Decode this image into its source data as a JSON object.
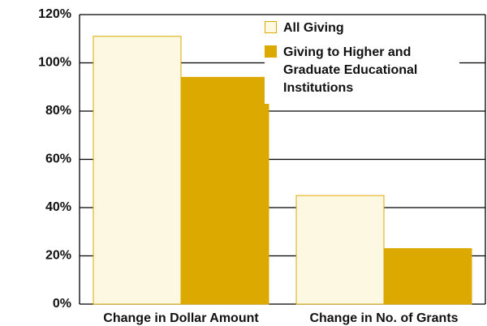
{
  "chart_data": {
    "type": "bar",
    "categories": [
      "Change in Dollar Amount",
      "Change in No. of Grants"
    ],
    "series": [
      {
        "name": "All Giving",
        "color": "#fdf8e2",
        "values": [
          111,
          45
        ]
      },
      {
        "name": "Giving to Higher and Graduate Educational Institutions",
        "color": "#dba900",
        "values": [
          94,
          23
        ]
      }
    ],
    "ylim": [
      0,
      120
    ],
    "yticks": [
      {
        "value": 0,
        "label": "0%"
      },
      {
        "value": 20,
        "label": "20%"
      },
      {
        "value": 40,
        "label": "40%"
      },
      {
        "value": 60,
        "label": "60%"
      },
      {
        "value": 80,
        "label": "80%"
      },
      {
        "value": 100,
        "label": "100%"
      },
      {
        "value": 120,
        "label": "120%"
      }
    ],
    "grid": true,
    "legend": "upper right"
  }
}
